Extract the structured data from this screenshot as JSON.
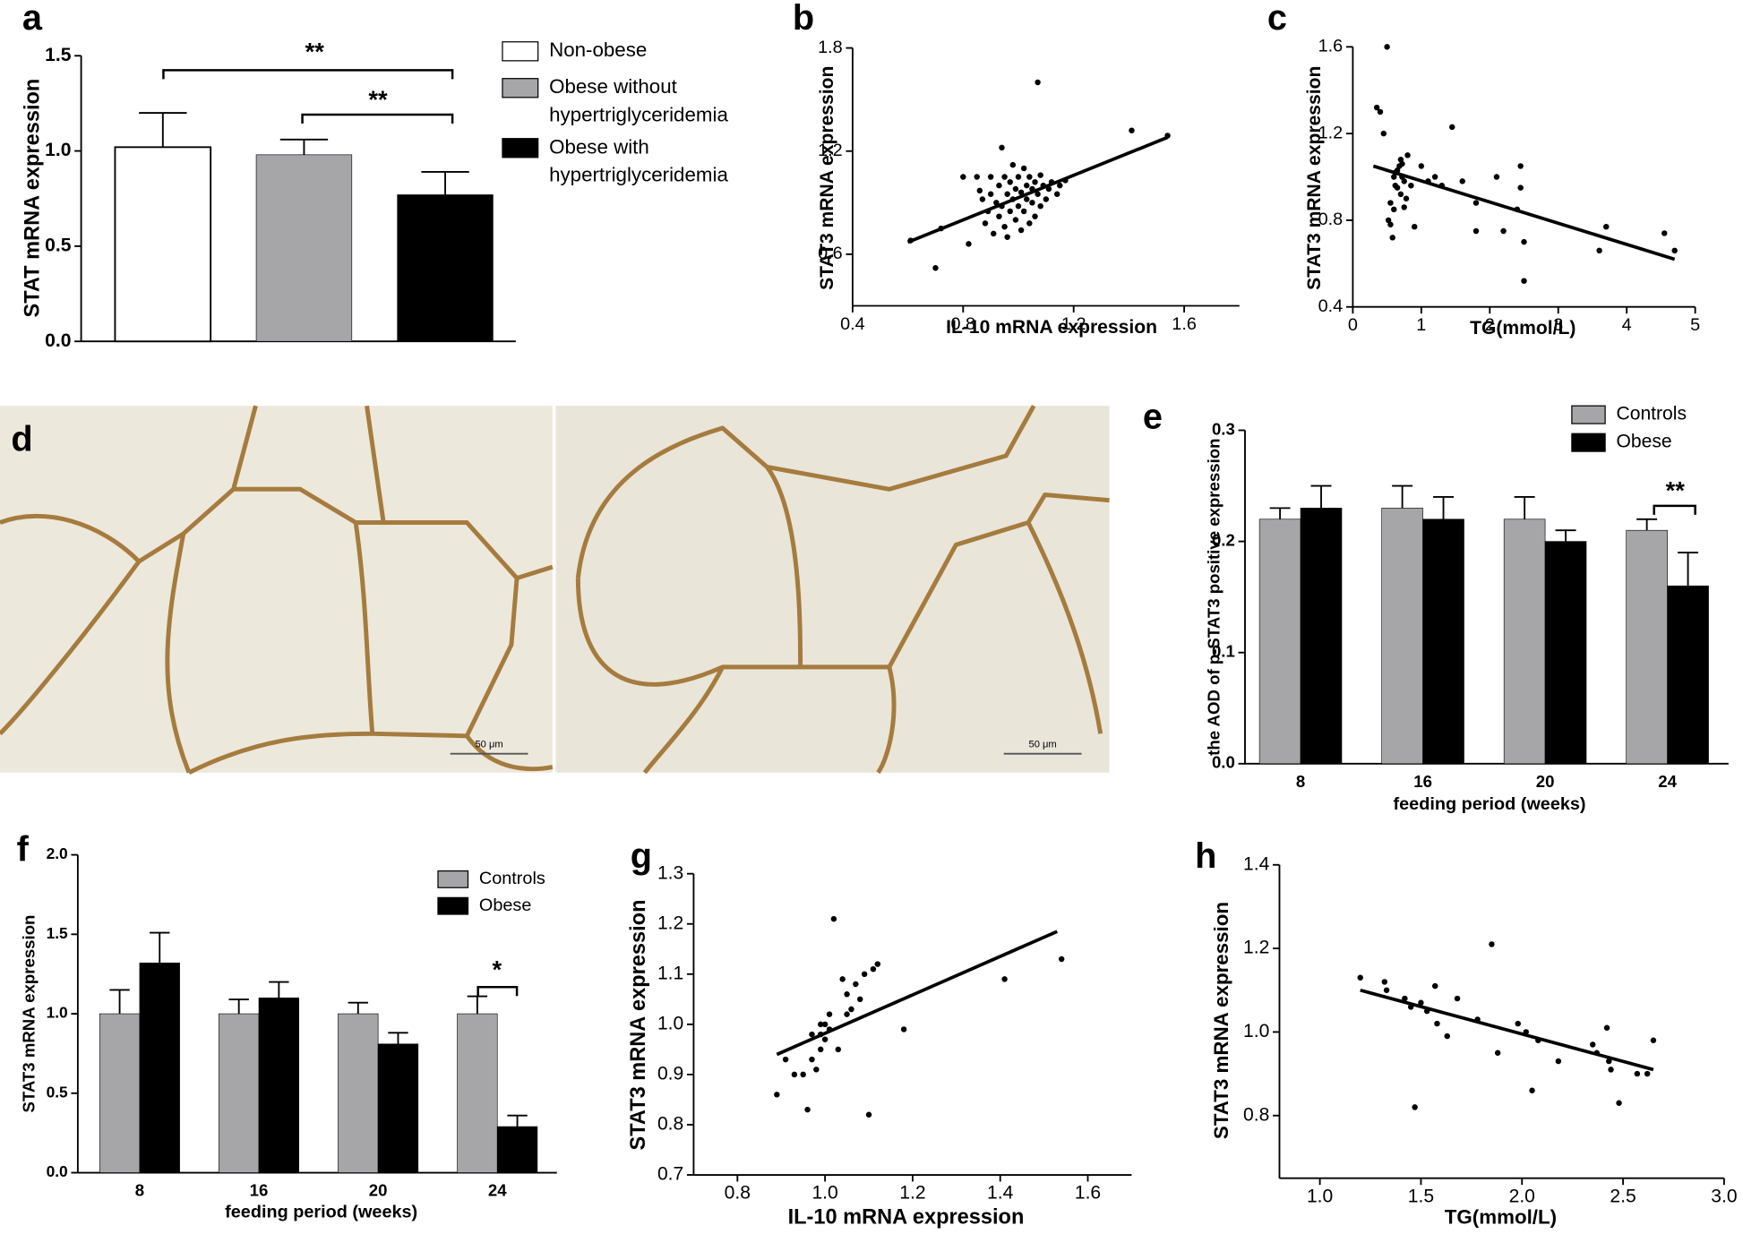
{
  "chart_data": [
    {
      "type": "bar",
      "label": "a",
      "ylabel": "STAT mRNA expression",
      "ylim": [
        0,
        1.5
      ],
      "yticks": [
        {
          "value": 0,
          "label": "0.0"
        },
        0.5,
        {
          "value": 1,
          "label": "1.0"
        },
        1.5
      ],
      "series": [
        {
          "name": "Non-obese",
          "color": "#ffffff",
          "values": [
            1.02
          ],
          "errors": [
            0.18
          ]
        },
        {
          "name": "Obese without hypertriglyceridemia",
          "color": "#a6a6a8",
          "values": [
            0.98
          ],
          "errors": [
            0.08
          ]
        },
        {
          "name": "Obese with hypertriglyceridemia",
          "color": "#000000",
          "values": [
            0.77
          ],
          "errors": [
            0.12
          ]
        }
      ],
      "annotations": [
        "**",
        "**"
      ]
    },
    {
      "type": "scatter",
      "label": "b",
      "xlabel": "IL-10 mRNA expression",
      "ylabel": "STAT3 mRNA expression",
      "xlim": [
        0.4,
        1.8
      ],
      "xticks": [
        0.4,
        0.8,
        1.2,
        1.6
      ],
      "ylim": [
        0.3,
        1.8
      ],
      "yticks": [
        0.6,
        1.2,
        1.8
      ],
      "x": [
        0.61,
        0.7,
        0.72,
        0.8,
        0.82,
        0.85,
        0.87,
        0.88,
        0.89,
        0.9,
        0.9,
        0.91,
        0.92,
        0.93,
        0.93,
        0.94,
        0.95,
        0.95,
        0.96,
        0.96,
        0.97,
        0.97,
        0.98,
        0.98,
        0.99,
        0.99,
        1.0,
        1.0,
        1.01,
        1.01,
        1.02,
        1.02,
        1.03,
        1.03,
        1.04,
        1.04,
        1.05,
        1.05,
        1.06,
        1.06,
        1.07,
        1.07,
        1.08,
        1.08,
        1.09,
        1.1,
        1.11,
        1.12,
        1.14,
        1.15,
        1.17,
        1.41,
        1.54,
        0.86,
        0.94
      ],
      "values": [
        0.68,
        0.52,
        0.75,
        1.05,
        0.66,
        1.05,
        0.92,
        0.78,
        0.85,
        1.05,
        0.95,
        0.72,
        0.9,
        0.82,
        1.0,
        0.88,
        0.76,
        1.05,
        0.95,
        0.7,
        0.85,
        1.02,
        0.92,
        1.12,
        0.8,
        0.98,
        0.88,
        1.05,
        0.74,
        0.96,
        1.1,
        0.85,
        0.92,
        1.0,
        0.78,
        1.05,
        0.9,
        0.98,
        0.82,
        1.02,
        1.6,
        0.95,
        0.88,
        1.06,
        1.0,
        0.92,
        0.98,
        1.02,
        0.95,
        1.0,
        1.03,
        1.32,
        1.29,
        0.97,
        1.22
      ],
      "trendline": {
        "x": [
          0.6,
          1.54
        ],
        "y": [
          0.67,
          1.28
        ]
      }
    },
    {
      "type": "scatter",
      "label": "c",
      "xlabel": "TG(mmol/L)",
      "ylabel": "STAT3 mRNA expression",
      "xlim": [
        0,
        5
      ],
      "xticks": [
        0,
        1,
        2,
        3,
        4,
        5
      ],
      "ylim": [
        0.4,
        1.6
      ],
      "yticks": [
        0.4,
        0.8,
        1.2,
        1.6
      ],
      "x": [
        0.35,
        0.4,
        0.45,
        0.5,
        0.52,
        0.55,
        0.58,
        0.6,
        0.62,
        0.65,
        0.68,
        0.7,
        0.72,
        0.75,
        0.78,
        0.8,
        0.55,
        0.6,
        0.65,
        0.7,
        0.75,
        0.85,
        0.9,
        1.0,
        1.1,
        1.2,
        1.3,
        1.45,
        1.6,
        1.8,
        1.8,
        2.1,
        2.2,
        2.4,
        2.45,
        2.45,
        2.5,
        2.5,
        3.6,
        3.7,
        4.55,
        4.7,
        0.62,
        0.72
      ],
      "values": [
        1.32,
        1.3,
        1.2,
        1.6,
        0.8,
        0.78,
        0.72,
        1.0,
        1.02,
        0.95,
        1.05,
        1.08,
        1.0,
        0.98,
        0.9,
        1.1,
        0.88,
        0.85,
        1.03,
        0.92,
        0.86,
        0.96,
        0.77,
        1.05,
        0.98,
        1.0,
        0.96,
        1.23,
        0.98,
        0.88,
        0.75,
        1.0,
        0.75,
        0.85,
        1.05,
        0.95,
        0.52,
        0.7,
        0.66,
        0.77,
        0.74,
        0.66,
        0.96,
        1.06
      ],
      "trendline": {
        "x": [
          0.3,
          4.7
        ],
        "y": [
          1.05,
          0.62
        ]
      }
    },
    {
      "type": "bar",
      "label": "e",
      "xlabel": "feeding period (weeks)",
      "ylabel": "the AOD of p-STAT3 positive expression",
      "categories": [
        "8",
        "16",
        "20",
        "24"
      ],
      "ylim": [
        0,
        0.3
      ],
      "yticks": [
        {
          "value": 0,
          "label": "0.0"
        },
        0.1,
        0.2,
        0.3
      ],
      "series": [
        {
          "name": "Controls",
          "color": "#a6a6a8",
          "values": [
            0.22,
            0.23,
            0.22,
            0.21
          ],
          "errors": [
            0.01,
            0.02,
            0.02,
            0.01
          ]
        },
        {
          "name": "Obese",
          "color": "#000000",
          "values": [
            0.23,
            0.22,
            0.2,
            0.16
          ],
          "errors": [
            0.02,
            0.02,
            0.01,
            0.03
          ]
        }
      ],
      "annotations": [
        "**"
      ]
    },
    {
      "type": "bar",
      "label": "f",
      "xlabel": "feeding period (weeks)",
      "ylabel": "STAT3 mRNA expression",
      "categories": [
        "8",
        "16",
        "20",
        "24"
      ],
      "ylim": [
        0,
        2
      ],
      "yticks": [
        {
          "value": 0,
          "label": "0.0"
        },
        0.5,
        {
          "value": 1,
          "label": "1.0"
        },
        1.5,
        {
          "value": 2,
          "label": "2.0"
        }
      ],
      "series": [
        {
          "name": "Controls",
          "color": "#a6a6a8",
          "values": [
            1.0,
            1.0,
            1.0,
            1.0
          ],
          "errors": [
            0.15,
            0.09,
            0.07,
            0.11
          ]
        },
        {
          "name": "Obese",
          "color": "#000000",
          "values": [
            1.32,
            1.1,
            0.81,
            0.29
          ],
          "errors": [
            0.19,
            0.1,
            0.07,
            0.07
          ]
        }
      ],
      "annotations": [
        "*"
      ]
    },
    {
      "type": "scatter",
      "label": "g",
      "xlabel": "IL-10 mRNA expression",
      "ylabel": "STAT3 mRNA expression",
      "xlim": [
        0.7,
        1.7
      ],
      "xticks": [
        0.8,
        {
          "value": 1,
          "label": "1.0"
        },
        1.2,
        1.4,
        1.6
      ],
      "ylim": [
        0.7,
        1.3
      ],
      "yticks": [
        0.7,
        0.8,
        0.9,
        {
          "value": 1,
          "label": "1.0"
        },
        1.1,
        1.2,
        1.3
      ],
      "x": [
        0.89,
        0.91,
        0.93,
        0.95,
        0.96,
        0.97,
        0.97,
        0.98,
        0.99,
        0.99,
        0.99,
        1.0,
        1.0,
        1.01,
        1.01,
        1.02,
        1.03,
        1.04,
        1.05,
        1.05,
        1.06,
        1.07,
        1.08,
        1.09,
        1.1,
        1.11,
        1.12,
        1.18,
        1.41,
        1.54
      ],
      "values": [
        0.86,
        0.93,
        0.9,
        0.9,
        0.83,
        0.93,
        0.98,
        0.91,
        0.95,
        1.0,
        0.98,
        1.0,
        0.97,
        1.02,
        0.99,
        1.21,
        0.95,
        1.09,
        1.02,
        1.06,
        1.03,
        1.08,
        1.05,
        1.1,
        0.82,
        1.11,
        1.12,
        0.99,
        1.09,
        1.13
      ],
      "trendline": {
        "x": [
          0.89,
          1.53
        ],
        "y": [
          0.94,
          1.185
        ]
      }
    },
    {
      "type": "scatter",
      "label": "h",
      "xlabel": "TG(mmol/L)",
      "ylabel": "STAT3 mRNA expression",
      "xlim": [
        0.8,
        3.0
      ],
      "xticks": [
        {
          "value": 1,
          "label": "1.0"
        },
        1.5,
        {
          "value": 2,
          "label": "2.0"
        },
        2.5,
        {
          "value": 3,
          "label": "3.0"
        }
      ],
      "ylim": [
        0.65,
        1.4
      ],
      "yticks": [
        0.8,
        {
          "value": 1,
          "label": "1.0"
        },
        1.2,
        1.4
      ],
      "x": [
        1.2,
        1.32,
        1.33,
        1.42,
        1.45,
        1.47,
        1.5,
        1.53,
        1.57,
        1.58,
        1.63,
        1.68,
        1.78,
        1.85,
        1.88,
        1.98,
        2.02,
        2.05,
        2.08,
        2.18,
        2.35,
        2.37,
        2.42,
        2.43,
        2.44,
        2.48,
        2.57,
        2.62,
        2.65
      ],
      "values": [
        1.13,
        1.12,
        1.1,
        1.08,
        1.06,
        0.82,
        1.07,
        1.05,
        1.11,
        1.02,
        0.99,
        1.08,
        1.03,
        1.21,
        0.95,
        1.02,
        1.0,
        0.86,
        0.98,
        0.93,
        0.97,
        0.95,
        1.01,
        0.93,
        0.91,
        0.83,
        0.9,
        0.9,
        0.98
      ],
      "trendline": {
        "x": [
          1.2,
          2.65
        ],
        "y": [
          1.1,
          0.91
        ]
      }
    }
  ],
  "image": {
    "label": "d",
    "scale_bars": [
      "50 μm",
      "50 μm"
    ]
  }
}
